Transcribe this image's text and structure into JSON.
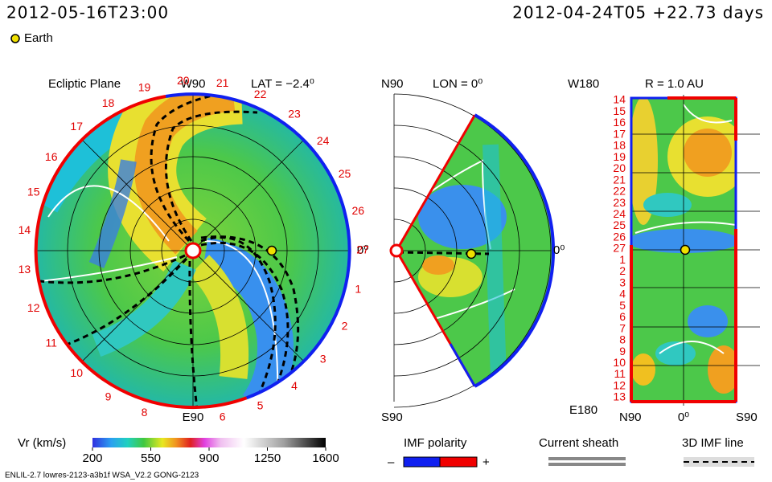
{
  "header": {
    "time": "2012-05-16T23:00",
    "reference": "2012-04-24T05 +22.73 days",
    "legend": "Earth"
  },
  "ecliptic": {
    "title": "Ecliptic Plane",
    "top": "W90",
    "bottom": "E90",
    "latitude": "LAT = −2.4⁰",
    "right": "0⁰",
    "rotation_labels": [
      "27",
      "26",
      "25",
      "24",
      "23",
      "22",
      "21",
      "20",
      "19",
      "18",
      "17",
      "16",
      "15",
      "14",
      "13",
      "12",
      "11",
      "10",
      "9",
      "8",
      null,
      "6",
      "5",
      "4",
      "3",
      "2",
      "1"
    ]
  },
  "meridional": {
    "top": "N90",
    "longitude": "LON = 0⁰",
    "bottom": "S90",
    "right": "0⁰"
  },
  "map": {
    "top_left": "W180",
    "radius": "R = 1.0 AU",
    "bottom_left": "E180",
    "bottom_labels": [
      "N90",
      "0⁰",
      "S90"
    ],
    "rotation_labels": [
      "14",
      "15",
      "16",
      "17",
      "18",
      "19",
      "20",
      "21",
      "22",
      "23",
      "24",
      "25",
      "26",
      "27",
      "1",
      "2",
      "3",
      "4",
      "5",
      "6",
      "7",
      "8",
      "9",
      "10",
      "11",
      "12",
      "13"
    ]
  },
  "colorbar": {
    "label": "Vr (km/s)",
    "range": [
      200,
      1600
    ],
    "ticks": [
      200,
      550,
      900,
      1250,
      1600
    ]
  },
  "legend": {
    "imf_polarity": "IMF polarity",
    "minus": "–",
    "plus": "+",
    "current_sheath": "Current sheath",
    "imf_line": "3D IMF line"
  },
  "footer": "ENLIL-2.7 lowres-2123-a3b1f WSA_V2.2 GONG-2123"
}
